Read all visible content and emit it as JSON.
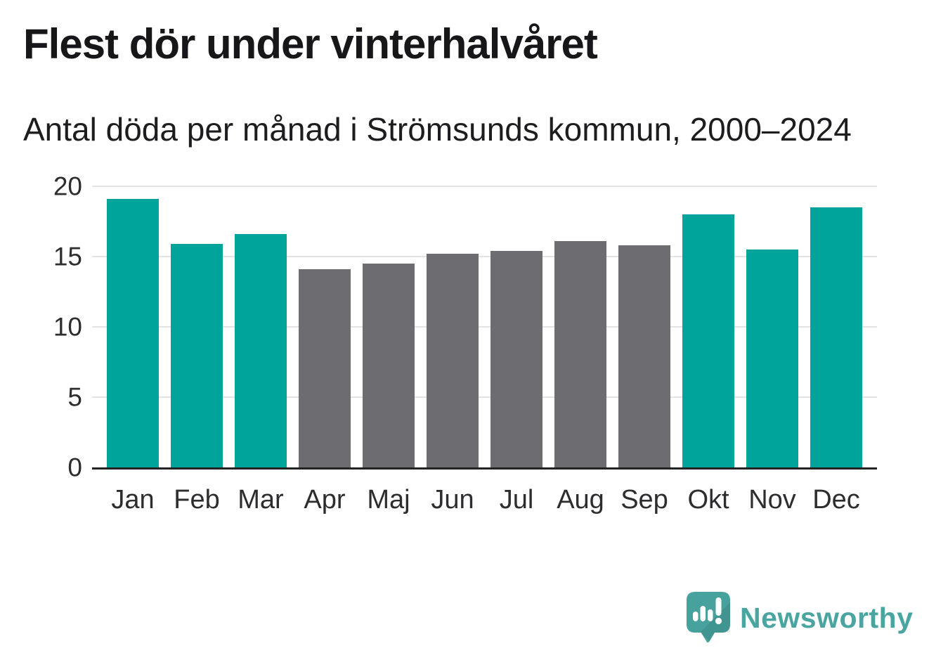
{
  "title": "Flest dör under vinterhalvåret",
  "subtitle": "Antal döda per månad i Strömsunds kommun, 2000–2024",
  "chart_data": {
    "type": "bar",
    "title": "Flest dör under vinterhalvåret",
    "subtitle": "Antal döda per månad i Strömsunds kommun, 2000–2024",
    "categories": [
      "Jan",
      "Feb",
      "Mar",
      "Apr",
      "Maj",
      "Jun",
      "Jul",
      "Aug",
      "Sep",
      "Okt",
      "Nov",
      "Dec"
    ],
    "values": [
      19.1,
      15.9,
      16.6,
      14.1,
      14.5,
      15.2,
      15.4,
      16.1,
      15.8,
      18.0,
      15.5,
      18.5
    ],
    "highlighted": [
      true,
      true,
      true,
      false,
      false,
      false,
      false,
      false,
      false,
      true,
      true,
      true
    ],
    "xlabel": "",
    "ylabel": "",
    "ylim": [
      0,
      20
    ],
    "yticks": [
      0,
      5,
      10,
      15,
      20
    ],
    "grid": "horizontal",
    "legend": "none",
    "colors": {
      "highlight": "#00a49a",
      "neutral": "#6d6c71"
    }
  },
  "branding": {
    "logo_text": "Newsworthy",
    "logo_icon": "speech-bubble-bar-chart-icon",
    "brand_color": "#4aa5a1"
  }
}
